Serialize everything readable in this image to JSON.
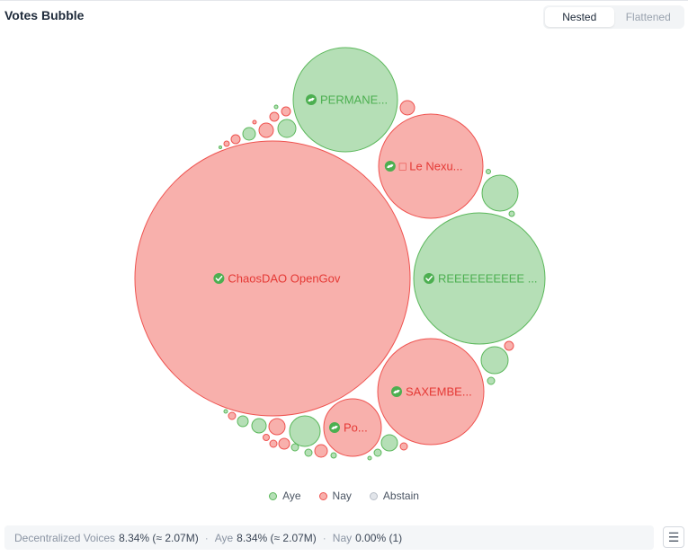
{
  "header": {
    "title": "Votes Bubble",
    "view_toggle": {
      "options": [
        "Nested",
        "Flattened"
      ],
      "selected": "Nested"
    }
  },
  "colors": {
    "aye_fill": "#b5dfb6",
    "aye_stroke": "#5cb85c",
    "aye_text": "#4caf50",
    "nay_fill": "#f8b0ac",
    "nay_stroke": "#ef5350",
    "nay_text": "#e53935",
    "abstain_fill": "#e2e5ea",
    "abstain_stroke": "#b8bec8",
    "verified_badge": "#4caf50"
  },
  "chart_data": {
    "type": "bubble",
    "title": "Votes Bubble",
    "mode": "Nested",
    "legend": {
      "position": "bottom",
      "entries": [
        {
          "name": "Aye",
          "key": "aye"
        },
        {
          "name": "Nay",
          "key": "nay"
        },
        {
          "name": "Abstain",
          "key": "abstain"
        }
      ]
    },
    "labeled_bubbles": [
      {
        "label": "ChaosDAO OpenGov",
        "vote": "nay",
        "badge": "verified"
      },
      {
        "label": "PERMANE...",
        "vote": "aye",
        "badge": "linked"
      },
      {
        "label": "□ Le Nexu...",
        "vote": "nay",
        "badge": "linked"
      },
      {
        "label": "REEEEEEEEEE ...",
        "vote": "aye",
        "badge": "verified"
      },
      {
        "label": "SAXEMBE...",
        "vote": "nay",
        "badge": "linked"
      },
      {
        "label": "Po...",
        "vote": "nay",
        "badge": "linked"
      }
    ]
  },
  "summary": {
    "decentralized_label": "Decentralized Voices",
    "decentralized_value": "8.34% (≈ 2.07M)",
    "aye_label": "Aye",
    "aye_value": "8.34% (≈ 2.07M)",
    "nay_label": "Nay",
    "nay_value": "0.00% (1)",
    "separator": "·"
  },
  "menu": {
    "icon": "menu-icon",
    "glyph": "☰"
  }
}
